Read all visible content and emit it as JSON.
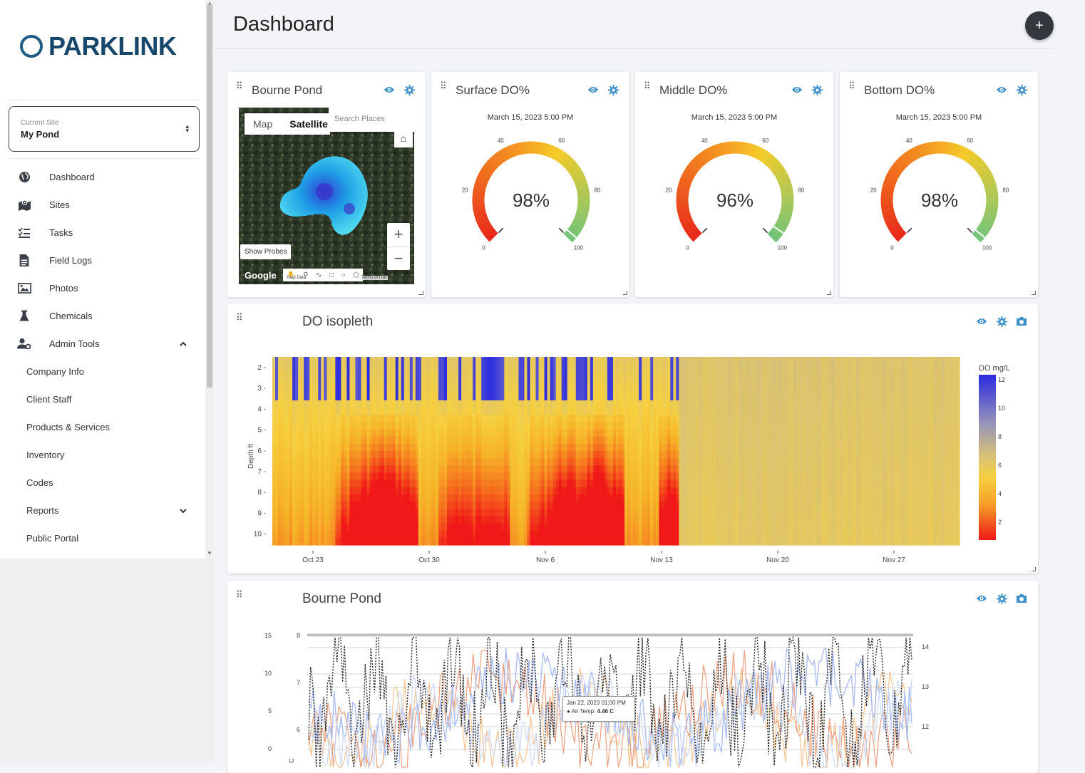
{
  "brand": {
    "name": "PARKLINK"
  },
  "site_select": {
    "label": "Current Site",
    "value": "My Pond"
  },
  "nav": {
    "dashboard": "Dashboard",
    "sites": "Sites",
    "tasks": "Tasks",
    "field_logs": "Field Logs",
    "photos": "Photos",
    "chemicals": "Chemicals",
    "admin_tools": "Admin Tools",
    "company_info": "Company Info",
    "client_staff": "Client Staff",
    "products_services": "Products & Services",
    "inventory": "Inventory",
    "codes": "Codes",
    "reports": "Reports",
    "public_portal": "Public Portal"
  },
  "page": {
    "title": "Dashboard"
  },
  "map_widget": {
    "title": "Bourne Pond",
    "tab_map": "Map",
    "tab_satellite": "Satellite",
    "search_placeholder": "Search Places",
    "show_probes": "Show Probes",
    "google": "Google",
    "map_data": "Map Data",
    "terms": "Terms of Use"
  },
  "gauges": [
    {
      "title": "Surface DO%",
      "timestamp": "March 15, 2023 5:00 PM",
      "value": 98,
      "display": "98%"
    },
    {
      "title": "Middle DO%",
      "timestamp": "March 15, 2023 5:00 PM",
      "value": 96,
      "display": "96%"
    },
    {
      "title": "Bottom DO%",
      "timestamp": "March 15, 2023 5:00 PM",
      "value": 98,
      "display": "98%"
    }
  ],
  "gauge_scale": {
    "min": 0,
    "max": 100,
    "ticks": [
      "0",
      "20",
      "40",
      "60",
      "80",
      "100"
    ]
  },
  "colors": {
    "accent": "#17476b",
    "gauge_low": "#e8291b",
    "gauge_mid": "#f5cb2a",
    "gauge_high": "#6fc47c"
  },
  "isopleth": {
    "title": "DO isopleth",
    "y_label": "Depth ft",
    "y_ticks": [
      "2",
      "3",
      "4",
      "5",
      "6",
      "7",
      "8",
      "9",
      "10"
    ],
    "x_ticks": [
      "Oct 23",
      "Oct 30",
      "Nov 6",
      "Nov 13",
      "Nov 20",
      "Nov 27"
    ],
    "legend_title": "DO mg/L",
    "legend_ticks": [
      "12",
      "10",
      "8",
      "6",
      "4",
      "2"
    ]
  },
  "line_chart": {
    "title": "Bourne Pond",
    "y_left_outer_ticks": [
      "15",
      "10",
      "5",
      "0"
    ],
    "y_left_inner_ticks": [
      "8",
      "7",
      "6"
    ],
    "y_right_ticks": [
      "14",
      "13",
      "12"
    ],
    "y_inner_unit": "C",
    "tooltip_date": "Jan 22, 2023 01:00 PM",
    "tooltip_series": "Air Temp:",
    "tooltip_value": "4.46 C"
  }
}
